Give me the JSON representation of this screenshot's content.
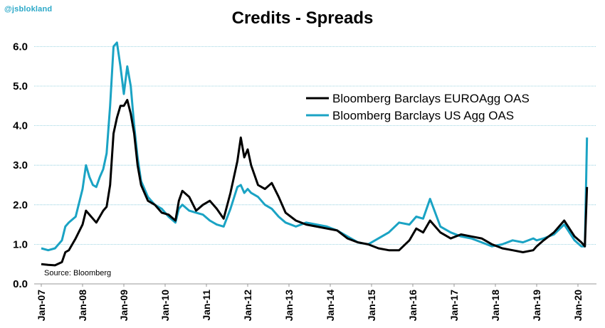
{
  "watermark": "@jsblokland",
  "chart_data": {
    "type": "line",
    "title": "Credits - Spreads",
    "xlabel": "",
    "ylabel": "",
    "ylim": [
      0,
      6.2
    ],
    "yticks": [
      "0.0",
      "1.0",
      "2.0",
      "3.0",
      "4.0",
      "5.0",
      "6.0"
    ],
    "xticks": [
      "Jan-07",
      "Jan-08",
      "Jan-09",
      "Jan-10",
      "Jan-11",
      "Jan-12",
      "Jan-13",
      "Jan-14",
      "Jan-15",
      "Jan-16",
      "Jan-17",
      "Jan-18",
      "Jan-19",
      "Jan-20"
    ],
    "grid": "horizontal",
    "legend_position": "top-right",
    "source": "Source: Bloomberg",
    "colors": {
      "EUROAgg": "#000000",
      "USAgg": "#1aa3c4",
      "grid": "#7fc7d9"
    },
    "series": [
      {
        "name": "Bloomberg Barclays EUROAgg OAS",
        "x": [
          "2007-01-01",
          "2007-03-01",
          "2007-05-01",
          "2007-07-01",
          "2007-08-01",
          "2007-09-01",
          "2007-11-01",
          "2008-01-01",
          "2008-02-01",
          "2008-03-01",
          "2008-04-01",
          "2008-05-01",
          "2008-06-01",
          "2008-07-01",
          "2008-08-01",
          "2008-09-01",
          "2008-10-01",
          "2008-11-01",
          "2008-12-01",
          "2009-01-01",
          "2009-02-01",
          "2009-03-01",
          "2009-04-01",
          "2009-05-01",
          "2009-06-01",
          "2009-08-01",
          "2009-10-01",
          "2009-12-01",
          "2010-02-01",
          "2010-04-01",
          "2010-05-01",
          "2010-06-01",
          "2010-08-01",
          "2010-10-01",
          "2010-12-01",
          "2011-02-01",
          "2011-04-01",
          "2011-06-01",
          "2011-08-01",
          "2011-10-01",
          "2011-11-01",
          "2011-12-01",
          "2012-01-01",
          "2012-02-01",
          "2012-04-01",
          "2012-06-01",
          "2012-08-01",
          "2012-10-01",
          "2012-12-01",
          "2013-03-01",
          "2013-06-01",
          "2013-09-01",
          "2013-12-01",
          "2014-03-01",
          "2014-06-01",
          "2014-09-01",
          "2014-12-01",
          "2015-03-01",
          "2015-06-01",
          "2015-09-01",
          "2015-12-01",
          "2016-02-01",
          "2016-04-01",
          "2016-06-01",
          "2016-09-01",
          "2016-12-01",
          "2017-03-01",
          "2017-06-01",
          "2017-09-01",
          "2017-12-01",
          "2018-03-01",
          "2018-06-01",
          "2018-09-01",
          "2018-12-01",
          "2019-01-01",
          "2019-03-01",
          "2019-06-01",
          "2019-09-01",
          "2019-12-01",
          "2020-02-01",
          "2020-03-01",
          "2020-03-20"
        ],
        "values": [
          0.5,
          0.48,
          0.47,
          0.55,
          0.8,
          0.85,
          1.15,
          1.5,
          1.85,
          1.75,
          1.65,
          1.55,
          1.7,
          1.85,
          1.95,
          2.5,
          3.8,
          4.2,
          4.5,
          4.5,
          4.65,
          4.3,
          3.8,
          3.0,
          2.5,
          2.1,
          2.0,
          1.8,
          1.75,
          1.6,
          2.1,
          2.35,
          2.2,
          1.85,
          2.0,
          2.1,
          1.9,
          1.65,
          2.3,
          3.1,
          3.7,
          3.2,
          3.4,
          3.0,
          2.5,
          2.4,
          2.55,
          2.2,
          1.8,
          1.6,
          1.5,
          1.45,
          1.4,
          1.35,
          1.15,
          1.05,
          1.0,
          0.9,
          0.85,
          0.85,
          1.1,
          1.4,
          1.3,
          1.6,
          1.3,
          1.15,
          1.25,
          1.2,
          1.15,
          1.0,
          0.9,
          0.85,
          0.8,
          0.85,
          0.95,
          1.1,
          1.3,
          1.6,
          1.2,
          1.05,
          0.95,
          2.45
        ]
      },
      {
        "name": "Bloomberg Barclays US Agg OAS",
        "x": [
          "2007-01-01",
          "2007-03-01",
          "2007-05-01",
          "2007-07-01",
          "2007-08-01",
          "2007-09-01",
          "2007-11-01",
          "2008-01-01",
          "2008-02-01",
          "2008-03-01",
          "2008-04-01",
          "2008-05-01",
          "2008-06-01",
          "2008-07-01",
          "2008-08-01",
          "2008-09-01",
          "2008-10-01",
          "2008-11-01",
          "2008-12-01",
          "2009-01-01",
          "2009-02-01",
          "2009-03-01",
          "2009-04-01",
          "2009-05-01",
          "2009-06-01",
          "2009-08-01",
          "2009-10-01",
          "2009-12-01",
          "2010-02-01",
          "2010-04-01",
          "2010-05-01",
          "2010-06-01",
          "2010-08-01",
          "2010-10-01",
          "2010-12-01",
          "2011-02-01",
          "2011-04-01",
          "2011-06-01",
          "2011-08-01",
          "2011-10-01",
          "2011-11-01",
          "2011-12-01",
          "2012-01-01",
          "2012-02-01",
          "2012-04-01",
          "2012-06-01",
          "2012-08-01",
          "2012-10-01",
          "2012-12-01",
          "2013-03-01",
          "2013-06-01",
          "2013-09-01",
          "2013-12-01",
          "2014-03-01",
          "2014-06-01",
          "2014-09-01",
          "2014-12-01",
          "2015-03-01",
          "2015-06-01",
          "2015-09-01",
          "2015-12-01",
          "2016-02-01",
          "2016-04-01",
          "2016-06-01",
          "2016-09-01",
          "2016-12-01",
          "2017-03-01",
          "2017-06-01",
          "2017-09-01",
          "2017-12-01",
          "2018-03-01",
          "2018-06-01",
          "2018-09-01",
          "2018-12-01",
          "2019-01-01",
          "2019-03-01",
          "2019-06-01",
          "2019-09-01",
          "2019-12-01",
          "2020-02-01",
          "2020-03-01",
          "2020-03-20"
        ],
        "values": [
          0.9,
          0.85,
          0.9,
          1.1,
          1.45,
          1.55,
          1.7,
          2.4,
          3.0,
          2.7,
          2.5,
          2.45,
          2.7,
          2.9,
          3.3,
          4.5,
          6.0,
          6.1,
          5.5,
          4.8,
          5.5,
          5.0,
          4.0,
          3.2,
          2.6,
          2.2,
          2.0,
          1.9,
          1.7,
          1.55,
          1.9,
          2.0,
          1.85,
          1.8,
          1.75,
          1.6,
          1.5,
          1.45,
          1.9,
          2.45,
          2.5,
          2.3,
          2.4,
          2.3,
          2.2,
          2.0,
          1.9,
          1.7,
          1.55,
          1.45,
          1.55,
          1.5,
          1.45,
          1.35,
          1.2,
          1.05,
          1.0,
          1.15,
          1.3,
          1.55,
          1.5,
          1.7,
          1.65,
          2.15,
          1.45,
          1.3,
          1.2,
          1.15,
          1.05,
          0.95,
          1.0,
          1.1,
          1.05,
          1.15,
          1.1,
          1.15,
          1.25,
          1.5,
          1.1,
          0.95,
          0.95,
          3.7
        ]
      }
    ]
  }
}
